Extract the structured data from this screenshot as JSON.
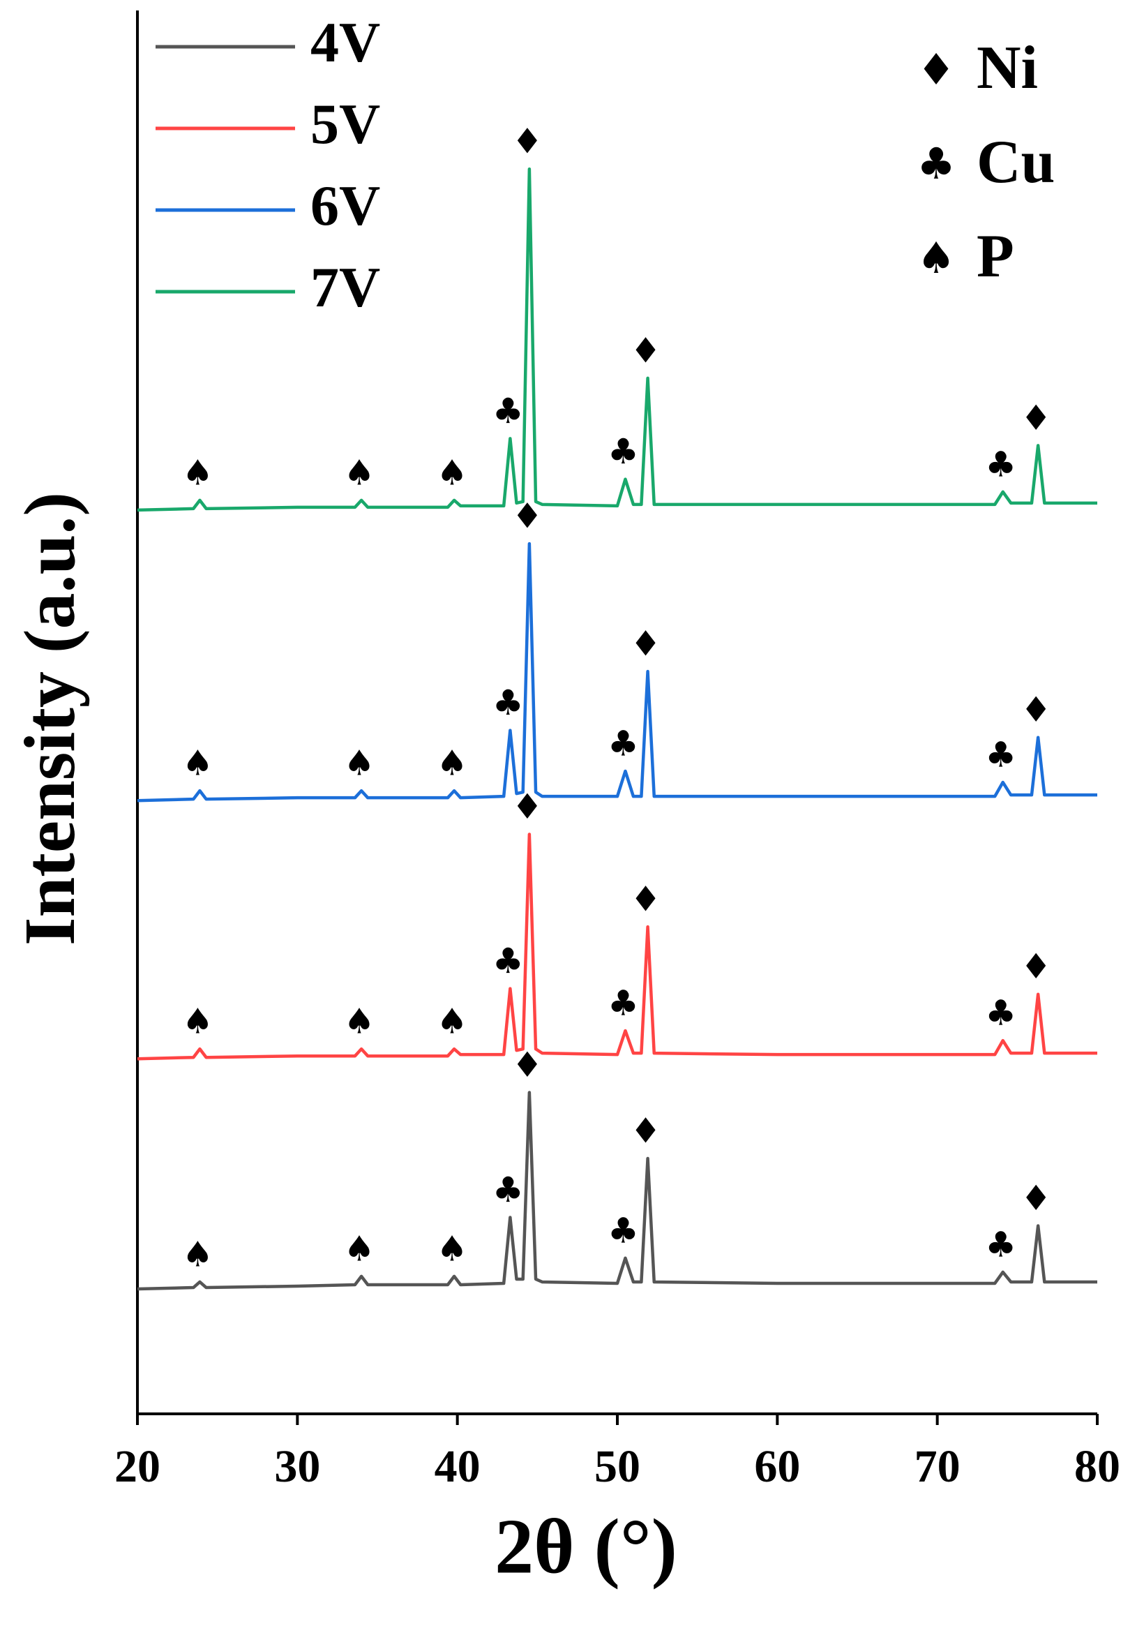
{
  "chart_data": {
    "type": "line",
    "xlabel": "2θ (°)",
    "ylabel": "Intensity (a.u.)",
    "x": [
      20,
      23.5,
      23.9,
      24.3,
      30,
      33.6,
      34,
      34.4,
      39.4,
      39.8,
      40.2,
      42.9,
      43.3,
      43.7,
      44.1,
      44.5,
      44.9,
      45.3,
      50.0,
      50.5,
      51.0,
      51.5,
      51.9,
      52.3,
      60,
      73.6,
      74.1,
      74.6,
      75.9,
      76.3,
      76.7,
      80
    ],
    "series": [
      {
        "name": "4V",
        "color": "#555555",
        "values": [
          8.9,
          9.0,
          9.4,
          9.0,
          9.1,
          9.2,
          9.8,
          9.2,
          9.2,
          9.8,
          9.2,
          9.3,
          14.0,
          9.6,
          9.6,
          22.9,
          9.6,
          9.4,
          9.3,
          11.1,
          9.4,
          9.4,
          18.2,
          9.4,
          9.3,
          9.3,
          10.1,
          9.4,
          9.4,
          13.4,
          9.4,
          9.4
        ]
      },
      {
        "name": "5V",
        "color": "#ff4444",
        "values": [
          25.3,
          25.4,
          26.0,
          25.4,
          25.5,
          25.5,
          26.0,
          25.5,
          25.5,
          26.0,
          25.6,
          25.6,
          30.3,
          25.9,
          26.0,
          41.3,
          26.0,
          25.7,
          25.6,
          27.3,
          25.7,
          25.7,
          34.7,
          25.7,
          25.6,
          25.6,
          26.6,
          25.7,
          25.7,
          29.9,
          25.7,
          25.7
        ]
      },
      {
        "name": "6V",
        "color": "#1c6fd9",
        "values": [
          43.7,
          43.8,
          44.4,
          43.8,
          43.9,
          43.9,
          44.4,
          43.9,
          43.9,
          44.4,
          43.9,
          44.0,
          48.7,
          44.2,
          44.3,
          62.0,
          44.3,
          44.0,
          44.0,
          45.8,
          44.0,
          44.0,
          52.9,
          44.0,
          44.0,
          44.0,
          45.0,
          44.1,
          44.1,
          48.2,
          44.1,
          44.1
        ]
      },
      {
        "name": "7V",
        "color": "#19a86b",
        "values": [
          64.4,
          64.5,
          65.1,
          64.5,
          64.6,
          64.6,
          65.1,
          64.6,
          64.6,
          65.1,
          64.7,
          64.7,
          69.5,
          64.9,
          65.0,
          88.7,
          65.0,
          64.8,
          64.7,
          66.6,
          64.8,
          64.8,
          73.8,
          64.8,
          64.8,
          64.8,
          65.7,
          64.9,
          64.9,
          69.0,
          64.9,
          64.9
        ]
      }
    ],
    "xlim": [
      20,
      80
    ],
    "xticks": [
      20,
      30,
      40,
      50,
      60,
      70,
      80
    ],
    "ylim": [
      0,
      100
    ],
    "legend": "top-left",
    "peak_markers": [
      {
        "symbol": "♠",
        "x": 23.9
      },
      {
        "symbol": "♠",
        "x": 34
      },
      {
        "symbol": "♠",
        "x": 39.8
      },
      {
        "symbol": "♣",
        "x": 43.3
      },
      {
        "symbol": "♦",
        "x": 44.5
      },
      {
        "symbol": "♣",
        "x": 50.5
      },
      {
        "symbol": "♦",
        "x": 51.9
      },
      {
        "symbol": "♣",
        "x": 74.1
      },
      {
        "symbol": "♦",
        "x": 76.3
      }
    ],
    "phases": [
      {
        "symbol": "♦",
        "label": "Ni"
      },
      {
        "symbol": "♣",
        "label": "Cu"
      },
      {
        "symbol": "♠",
        "label": "P"
      }
    ]
  }
}
